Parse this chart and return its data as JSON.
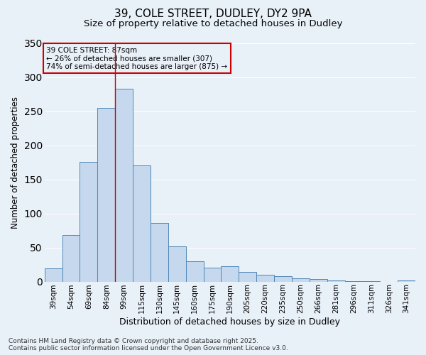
{
  "title_line1": "39, COLE STREET, DUDLEY, DY2 9PA",
  "title_line2": "Size of property relative to detached houses in Dudley",
  "xlabel": "Distribution of detached houses by size in Dudley",
  "ylabel": "Number of detached properties",
  "categories": [
    "39sqm",
    "54sqm",
    "69sqm",
    "84sqm",
    "99sqm",
    "115sqm",
    "130sqm",
    "145sqm",
    "160sqm",
    "175sqm",
    "190sqm",
    "205sqm",
    "220sqm",
    "235sqm",
    "250sqm",
    "266sqm",
    "281sqm",
    "296sqm",
    "311sqm",
    "326sqm",
    "341sqm"
  ],
  "values": [
    19,
    68,
    176,
    255,
    283,
    170,
    86,
    52,
    30,
    20,
    22,
    14,
    10,
    8,
    5,
    4,
    2,
    1,
    1,
    0,
    2
  ],
  "bar_color": "#c5d8ed",
  "bar_edge_color": "#4f87b8",
  "background_color": "#e8f0f8",
  "grid_color": "#ffffff",
  "annotation_title": "39 COLE STREET: 87sqm",
  "annotation_line2": "← 26% of detached houses are smaller (307)",
  "annotation_line3": "74% of semi-detached houses are larger (875) →",
  "vline_position": 3.5,
  "vline_color": "#cc0000",
  "annotation_box_color": "#cc0000",
  "ylim": [
    0,
    350
  ],
  "yticks": [
    0,
    50,
    100,
    150,
    200,
    250,
    300,
    350
  ],
  "footer_line1": "Contains HM Land Registry data © Crown copyright and database right 2025.",
  "footer_line2": "Contains public sector information licensed under the Open Government Licence v3.0.",
  "title_fontsize": 11,
  "subtitle_fontsize": 9.5,
  "axis_label_fontsize": 8.5,
  "tick_fontsize": 7.5,
  "annotation_fontsize": 7.5,
  "footer_fontsize": 6.5
}
